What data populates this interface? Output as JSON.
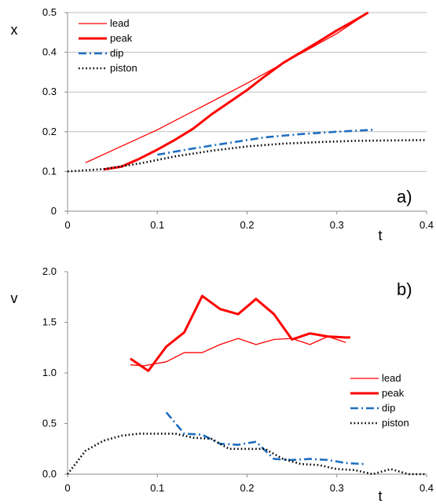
{
  "chart_data": [
    {
      "type": "line",
      "panel_label": "a)",
      "xlabel": "t",
      "ylabel": "x",
      "xlim": [
        0,
        0.4
      ],
      "ylim": [
        0,
        0.5
      ],
      "xticks": [
        "0",
        "0.1",
        "0.2",
        "0.3",
        "0.4"
      ],
      "yticks": [
        "0",
        "0.1",
        "0.2",
        "0.3",
        "0.4",
        "0.5"
      ],
      "grid": "horizontal",
      "legend_position": "top-left",
      "series": [
        {
          "name": "lead",
          "color": "#ff0000",
          "style": "thin-solid",
          "x": [
            0.02,
            0.1,
            0.2,
            0.3,
            0.335
          ],
          "y": [
            0.122,
            0.205,
            0.322,
            0.447,
            0.5
          ]
        },
        {
          "name": "peak",
          "color": "#ff0000",
          "style": "thick-solid",
          "x": [
            0.04,
            0.06,
            0.08,
            0.1,
            0.12,
            0.14,
            0.16,
            0.18,
            0.2,
            0.22,
            0.24,
            0.26,
            0.28,
            0.3,
            0.32,
            0.335
          ],
          "y": [
            0.105,
            0.112,
            0.132,
            0.155,
            0.18,
            0.208,
            0.243,
            0.274,
            0.305,
            0.34,
            0.373,
            0.4,
            0.427,
            0.455,
            0.48,
            0.5
          ]
        },
        {
          "name": "dip",
          "color": "#1f6fc0",
          "style": "dash-dot",
          "x": [
            0.1,
            0.14,
            0.18,
            0.22,
            0.26,
            0.3,
            0.34
          ],
          "y": [
            0.142,
            0.158,
            0.172,
            0.186,
            0.194,
            0.2,
            0.205
          ]
        },
        {
          "name": "piston",
          "color": "#000000",
          "style": "dotted",
          "x": [
            0,
            0.04,
            0.08,
            0.12,
            0.16,
            0.2,
            0.24,
            0.28,
            0.32,
            0.36,
            0.4
          ],
          "y": [
            0.1,
            0.106,
            0.12,
            0.138,
            0.152,
            0.163,
            0.17,
            0.174,
            0.177,
            0.178,
            0.179
          ]
        }
      ]
    },
    {
      "type": "line",
      "panel_label": "b)",
      "xlabel": "t",
      "ylabel": "v",
      "xlim": [
        0,
        0.4
      ],
      "ylim": [
        0,
        2.0
      ],
      "xticks": [
        "0",
        "0.1",
        "0.2",
        "0.3",
        "0.4"
      ],
      "yticks": [
        "0.0",
        "0.5",
        "1.0",
        "1.5",
        "2.0"
      ],
      "grid": "none",
      "legend_position": "middle-right",
      "series": [
        {
          "name": "lead",
          "color": "#ff0000",
          "style": "thin-solid",
          "x": [
            0.07,
            0.085,
            0.11,
            0.13,
            0.15,
            0.17,
            0.19,
            0.21,
            0.23,
            0.25,
            0.27,
            0.29,
            0.31
          ],
          "y": [
            1.08,
            1.07,
            1.11,
            1.2,
            1.2,
            1.28,
            1.34,
            1.28,
            1.33,
            1.34,
            1.28,
            1.36,
            1.3
          ]
        },
        {
          "name": "peak",
          "color": "#ff0000",
          "style": "thick-solid",
          "x": [
            0.07,
            0.09,
            0.11,
            0.13,
            0.15,
            0.17,
            0.19,
            0.21,
            0.23,
            0.25,
            0.27,
            0.29,
            0.31,
            0.315
          ],
          "y": [
            1.14,
            1.02,
            1.26,
            1.4,
            1.76,
            1.63,
            1.58,
            1.73,
            1.58,
            1.33,
            1.39,
            1.36,
            1.35,
            1.35
          ]
        },
        {
          "name": "dip",
          "color": "#1f6fc0",
          "style": "dash-dot",
          "x": [
            0.11,
            0.13,
            0.15,
            0.17,
            0.19,
            0.21,
            0.23,
            0.25,
            0.27,
            0.29,
            0.31,
            0.33
          ],
          "y": [
            0.61,
            0.4,
            0.39,
            0.3,
            0.29,
            0.32,
            0.15,
            0.14,
            0.15,
            0.14,
            0.11,
            0.1
          ]
        },
        {
          "name": "piston",
          "color": "#000000",
          "style": "dotted",
          "x": [
            0,
            0.02,
            0.04,
            0.06,
            0.08,
            0.1,
            0.12,
            0.14,
            0.16,
            0.18,
            0.2,
            0.22,
            0.24,
            0.26,
            0.28,
            0.3,
            0.32,
            0.34,
            0.36,
            0.38,
            0.4
          ],
          "y": [
            0.0,
            0.23,
            0.33,
            0.38,
            0.4,
            0.4,
            0.4,
            0.36,
            0.35,
            0.25,
            0.25,
            0.25,
            0.15,
            0.1,
            0.09,
            0.05,
            0.04,
            0.0,
            0.05,
            0.0,
            0.0
          ]
        }
      ]
    }
  ]
}
